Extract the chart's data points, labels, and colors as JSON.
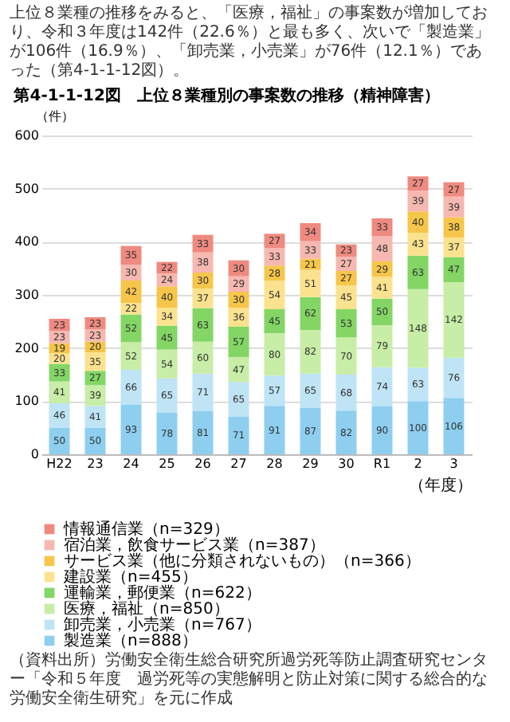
{
  "chart_data": {
    "type": "bar",
    "title": "第4-1-1-12図　上位８業種別の事案数の推移（精神障害）",
    "ylabel": "（件）",
    "xlabel": "（年度）",
    "annotations": [
      "上位８業種の推移をみると、「医療，福祉」の事案数が増加しており、令和３年度は142件（22.6％）と最も多く、次いで「製造業」が106件（16.9％）、「卸売業，小売業」が76件（12.1％）であった（第4-1-1-12図）。",
      "（資料出所）労働安全衛生総合研究所過労死等防止調査研究センター「令和５年度　過労死等の実態解明と防止対策に関する総合的な労働安全衛生研究」を元に作成"
    ],
    "categories": [
      "H22",
      "23",
      "24",
      "25",
      "26",
      "27",
      "28",
      "29",
      "30",
      "R1",
      "2",
      "3"
    ],
    "stacked": true,
    "data_labels": true,
    "legend": "bottom",
    "grid": "y",
    "ylim": [
      0,
      600
    ],
    "yticks": [
      0,
      100,
      200,
      300,
      400,
      500,
      600
    ],
    "series": [
      {
        "name": "製造業（n=888）",
        "color": "#8ecff0",
        "values": [
          50,
          50,
          93,
          78,
          81,
          71,
          91,
          87,
          82,
          90,
          100,
          106
        ]
      },
      {
        "name": "卸売業，小売業（n=767）",
        "color": "#bfe4f5",
        "values": [
          46,
          41,
          66,
          65,
          71,
          65,
          57,
          65,
          68,
          74,
          63,
          76
        ]
      },
      {
        "name": "医療，福祉（n=850）",
        "color": "#c8eda6",
        "values": [
          41,
          39,
          52,
          54,
          60,
          47,
          80,
          82,
          70,
          79,
          148,
          142
        ]
      },
      {
        "name": "運輸業，郵便業（n=622）",
        "color": "#83d664",
        "values": [
          33,
          27,
          52,
          45,
          63,
          57,
          45,
          62,
          53,
          50,
          63,
          47
        ]
      },
      {
        "name": "建設業（n=455）",
        "color": "#fbe28e",
        "values": [
          20,
          35,
          22,
          34,
          37,
          36,
          54,
          51,
          45,
          41,
          43,
          37
        ]
      },
      {
        "name": "サービス業（他に分類されないもの）（n=366）",
        "color": "#f6c64a",
        "values": [
          19,
          20,
          42,
          40,
          30,
          30,
          28,
          21,
          27,
          29,
          40,
          38
        ]
      },
      {
        "name": "宿泊業，飲食サービス業（n=387）",
        "color": "#f6b8b0",
        "values": [
          23,
          23,
          30,
          24,
          38,
          29,
          33,
          33,
          27,
          48,
          39,
          39
        ]
      },
      {
        "name": "情報通信業（n=329）",
        "color": "#ef8a80",
        "values": [
          23,
          23,
          35,
          22,
          33,
          30,
          27,
          34,
          23,
          33,
          27,
          27
        ]
      }
    ]
  }
}
